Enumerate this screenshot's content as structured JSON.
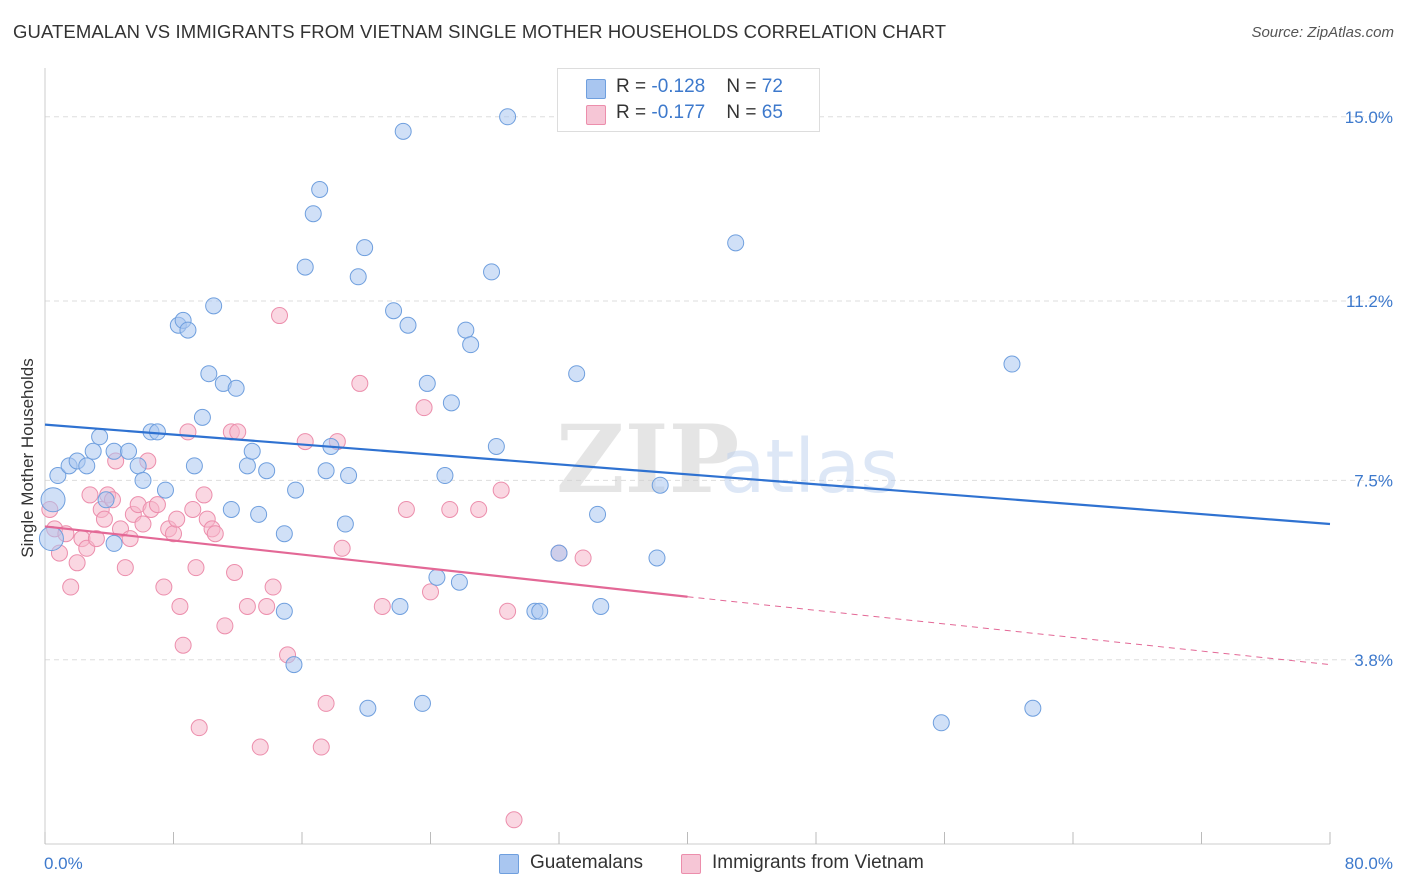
{
  "title": "GUATEMALAN VS IMMIGRANTS FROM VIETNAM SINGLE MOTHER HOUSEHOLDS CORRELATION CHART",
  "source": "Source: ZipAtlas.com",
  "watermark": {
    "zip": "ZIP",
    "atlas": "atlas"
  },
  "colors": {
    "blue_fill": "#a9c6f0",
    "blue_stroke": "#6f9fde",
    "blue_line": "#2f72d1",
    "pink_fill": "#f6b7ca",
    "pink_stroke": "#ec8eac",
    "pink_line": "#e36896",
    "axis_text": "#3d79cc",
    "grid": "#dddddd"
  },
  "legend": {
    "rows": [
      {
        "r_label": "R = ",
        "r_value": "-0.128",
        "n_label": "N = ",
        "n_value": "72"
      },
      {
        "r_label": "R = ",
        "r_value": "-0.177",
        "n_label": "N = ",
        "n_value": "65"
      }
    ]
  },
  "bottom_legend": [
    "Guatemalans",
    "Immigrants from Vietnam"
  ],
  "chart_data": {
    "type": "scatter",
    "title": "GUATEMALAN VS IMMIGRANTS FROM VIETNAM SINGLE MOTHER HOUSEHOLDS CORRELATION CHART",
    "xlabel": "",
    "ylabel": "Single Mother Households",
    "xlim": [
      0,
      80
    ],
    "ylim": [
      0,
      15.8
    ],
    "x_tick_labels": [
      "0.0%",
      "80.0%"
    ],
    "y_ticks": [
      3.8,
      7.5,
      11.2,
      15.0
    ],
    "y_tick_labels": [
      "3.8%",
      "7.5%",
      "11.2%",
      "15.0%"
    ],
    "grid": true,
    "legend_position": "top-center",
    "series": [
      {
        "name": "Guatemalans",
        "color": "#a9c6f0",
        "trend": {
          "x": [
            0,
            80
          ],
          "y": [
            8.65,
            6.6
          ]
        },
        "points": [
          [
            0.5,
            7.1
          ],
          [
            0.4,
            6.3
          ],
          [
            0.8,
            7.6
          ],
          [
            1.5,
            7.8
          ],
          [
            2.0,
            7.9
          ],
          [
            2.6,
            7.8
          ],
          [
            3.0,
            8.1
          ],
          [
            3.4,
            8.4
          ],
          [
            3.8,
            7.1
          ],
          [
            4.3,
            6.2
          ],
          [
            4.3,
            8.1
          ],
          [
            5.2,
            8.1
          ],
          [
            5.8,
            7.8
          ],
          [
            6.1,
            7.5
          ],
          [
            6.6,
            8.5
          ],
          [
            7.0,
            8.5
          ],
          [
            7.5,
            7.3
          ],
          [
            8.3,
            10.7
          ],
          [
            8.6,
            10.8
          ],
          [
            8.9,
            10.6
          ],
          [
            9.3,
            7.8
          ],
          [
            9.8,
            8.8
          ],
          [
            10.2,
            9.7
          ],
          [
            10.5,
            11.1
          ],
          [
            11.1,
            9.5
          ],
          [
            11.9,
            9.4
          ],
          [
            11.6,
            6.9
          ],
          [
            12.6,
            7.8
          ],
          [
            12.9,
            8.1
          ],
          [
            13.3,
            6.8
          ],
          [
            13.8,
            7.7
          ],
          [
            14.9,
            4.8
          ],
          [
            14.9,
            6.4
          ],
          [
            15.5,
            3.7
          ],
          [
            15.6,
            7.3
          ],
          [
            16.2,
            11.9
          ],
          [
            16.7,
            13.0
          ],
          [
            17.1,
            13.5
          ],
          [
            17.5,
            7.7
          ],
          [
            17.8,
            8.2
          ],
          [
            18.7,
            6.6
          ],
          [
            18.9,
            7.6
          ],
          [
            19.5,
            11.7
          ],
          [
            19.9,
            12.3
          ],
          [
            20.1,
            2.8
          ],
          [
            21.7,
            11.0
          ],
          [
            22.1,
            4.9
          ],
          [
            22.3,
            14.7
          ],
          [
            22.6,
            10.7
          ],
          [
            23.5,
            2.9
          ],
          [
            23.8,
            9.5
          ],
          [
            24.4,
            5.5
          ],
          [
            24.9,
            7.6
          ],
          [
            25.3,
            9.1
          ],
          [
            25.8,
            5.4
          ],
          [
            26.2,
            10.6
          ],
          [
            26.5,
            10.3
          ],
          [
            27.8,
            11.8
          ],
          [
            28.1,
            8.2
          ],
          [
            28.8,
            15.0
          ],
          [
            30.5,
            4.8
          ],
          [
            30.8,
            4.8
          ],
          [
            32.0,
            6.0
          ],
          [
            33.1,
            9.7
          ],
          [
            34.4,
            6.8
          ],
          [
            34.6,
            4.9
          ],
          [
            38.1,
            5.9
          ],
          [
            38.3,
            7.4
          ],
          [
            43.0,
            12.4
          ],
          [
            55.8,
            2.5
          ],
          [
            60.2,
            9.9
          ],
          [
            61.5,
            2.8
          ]
        ]
      },
      {
        "name": "Immigrants from Vietnam",
        "color": "#f6b7ca",
        "trend": {
          "x": [
            0,
            40
          ],
          "y": [
            6.55,
            5.1
          ]
        },
        "trend_dashed": {
          "x": [
            40,
            80
          ],
          "y": [
            5.1,
            3.7
          ]
        },
        "points": [
          [
            0.3,
            6.9
          ],
          [
            0.6,
            6.5
          ],
          [
            0.9,
            6.0
          ],
          [
            1.3,
            6.4
          ],
          [
            1.6,
            5.3
          ],
          [
            2.0,
            5.8
          ],
          [
            2.3,
            6.3
          ],
          [
            2.6,
            6.1
          ],
          [
            2.8,
            7.2
          ],
          [
            3.2,
            6.3
          ],
          [
            3.5,
            6.9
          ],
          [
            3.7,
            6.7
          ],
          [
            3.9,
            7.2
          ],
          [
            4.2,
            7.1
          ],
          [
            4.4,
            7.9
          ],
          [
            4.7,
            6.5
          ],
          [
            5.0,
            5.7
          ],
          [
            5.3,
            6.3
          ],
          [
            5.5,
            6.8
          ],
          [
            5.8,
            7.0
          ],
          [
            6.1,
            6.6
          ],
          [
            6.4,
            7.9
          ],
          [
            6.6,
            6.9
          ],
          [
            7.0,
            7.0
          ],
          [
            7.4,
            5.3
          ],
          [
            7.7,
            6.5
          ],
          [
            8.0,
            6.4
          ],
          [
            8.2,
            6.7
          ],
          [
            8.4,
            4.9
          ],
          [
            8.6,
            4.1
          ],
          [
            8.9,
            8.5
          ],
          [
            9.2,
            6.9
          ],
          [
            9.4,
            5.7
          ],
          [
            9.6,
            2.4
          ],
          [
            9.9,
            7.2
          ],
          [
            10.1,
            6.7
          ],
          [
            10.4,
            6.5
          ],
          [
            10.6,
            6.4
          ],
          [
            11.2,
            4.5
          ],
          [
            11.6,
            8.5
          ],
          [
            11.8,
            5.6
          ],
          [
            12.0,
            8.5
          ],
          [
            12.6,
            4.9
          ],
          [
            13.4,
            2.0
          ],
          [
            13.8,
            4.9
          ],
          [
            14.2,
            5.3
          ],
          [
            14.6,
            10.9
          ],
          [
            15.1,
            3.9
          ],
          [
            16.2,
            8.3
          ],
          [
            17.2,
            2.0
          ],
          [
            17.5,
            2.9
          ],
          [
            18.2,
            8.3
          ],
          [
            18.5,
            6.1
          ],
          [
            19.6,
            9.5
          ],
          [
            21.0,
            4.9
          ],
          [
            22.5,
            6.9
          ],
          [
            23.6,
            9.0
          ],
          [
            24.0,
            5.2
          ],
          [
            25.2,
            6.9
          ],
          [
            27.0,
            6.9
          ],
          [
            28.4,
            7.3
          ],
          [
            28.8,
            4.8
          ],
          [
            29.2,
            0.5
          ],
          [
            32.0,
            6.0
          ],
          [
            33.5,
            5.9
          ]
        ]
      }
    ]
  }
}
